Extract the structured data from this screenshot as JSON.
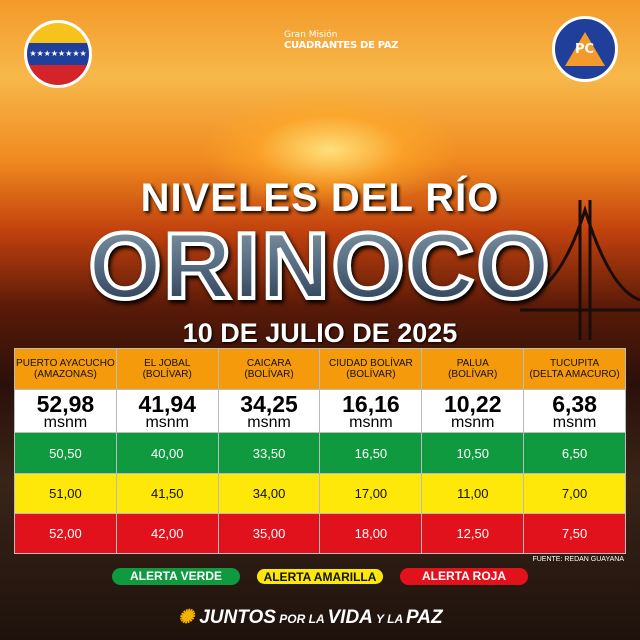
{
  "logos": {
    "left": "Ministerio del Poder Popular para Relaciones Interiores, Justicia y Paz",
    "center_small": "Gran Misión",
    "center_main": "CUADRANTES DE PAZ",
    "right": "PC",
    "right_ring": "Protección Civil y Administración de Desastres"
  },
  "title_line1": "NIVELES DEL RÍO",
  "title_line2": "ORINOCO",
  "date": "10 DE JULIO DE 2025",
  "stations": [
    {
      "name": "PUERTO AYACUCHO",
      "region": "(AMAZONAS)",
      "level": "52,98",
      "unit": "msnm",
      "verde": "50,50",
      "amarilla": "51,00",
      "roja": "52,00"
    },
    {
      "name": "EL JOBAL",
      "region": "(BOLÍVAR)",
      "level": "41,94",
      "unit": "msnm",
      "verde": "40,00",
      "amarilla": "41,50",
      "roja": "42,00"
    },
    {
      "name": "CAICARA",
      "region": "(BOLÍVAR)",
      "level": "34,25",
      "unit": "msnm",
      "verde": "33,50",
      "amarilla": "34,00",
      "roja": "35,00"
    },
    {
      "name": "CIUDAD BOLÍVAR",
      "region": "(BOLÍVAR)",
      "level": "16,16",
      "unit": "msnm",
      "verde": "16,50",
      "amarilla": "17,00",
      "roja": "18,00"
    },
    {
      "name": "PALUA",
      "region": "(BOLÍVAR)",
      "level": "10,22",
      "unit": "msnm",
      "verde": "10,50",
      "amarilla": "11,00",
      "roja": "12,50"
    },
    {
      "name": "TUCUPITA",
      "region": "(DELTA AMACURO)",
      "level": "6,38",
      "unit": "msnm",
      "verde": "6,50",
      "amarilla": "7,00",
      "roja": "7,50"
    }
  ],
  "source": "FUENTE: REDAN GUAYANA",
  "legend": [
    {
      "label": "ALERTA VERDE",
      "color": "#0f9a40"
    },
    {
      "label": "ALERTA AMARILLA",
      "color": "#fde80a"
    },
    {
      "label": "ALERTA ROJA",
      "color": "#e2121c"
    }
  ],
  "slogan": {
    "a": "JUNTOS",
    "b": " POR LA ",
    "c": "VIDA",
    "d": " Y LA ",
    "e": "PAZ"
  }
}
